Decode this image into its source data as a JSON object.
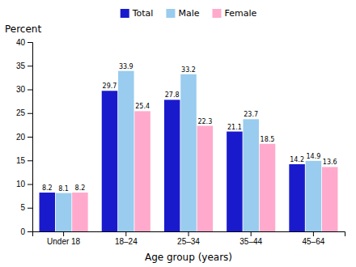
{
  "chart_data": {
    "type": "bar",
    "x_label": "Age group (years)",
    "y_label": "Percent",
    "categories": [
      "Under 18",
      "18–24",
      "25–34",
      "35–44",
      "45–64"
    ],
    "series": [
      {
        "name": "Total",
        "color": "#1a1acd",
        "values": [
          8.2,
          29.7,
          27.8,
          21.1,
          14.2
        ]
      },
      {
        "name": "Male",
        "color": "#99ccee",
        "values": [
          8.1,
          33.9,
          33.2,
          23.7,
          14.9
        ]
      },
      {
        "name": "Female",
        "color": "#ffaacc",
        "values": [
          8.2,
          25.4,
          22.3,
          18.5,
          13.6
        ]
      }
    ],
    "ylim": [
      0,
      40
    ],
    "yticks": [
      0,
      5,
      10,
      15,
      20,
      25,
      30,
      35,
      40
    ],
    "grid": false,
    "legend": "top",
    "data_labels": true
  }
}
